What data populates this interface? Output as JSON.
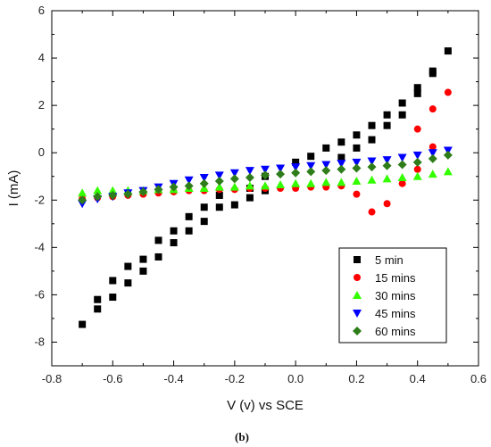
{
  "chart_data": {
    "type": "scatter",
    "xlabel": "V (v) vs SCE",
    "ylabel": "I (mA)",
    "xlim": [
      -0.8,
      0.6
    ],
    "ylim": [
      -9,
      6
    ],
    "xticks": [
      -0.8,
      -0.6,
      -0.4,
      -0.2,
      0.0,
      0.2,
      0.4,
      0.6
    ],
    "xtick_labels": [
      "-0.8",
      "-0.6",
      "-0.4",
      "-0.2",
      "0.0",
      "0.2",
      "0.4",
      "0.6"
    ],
    "yticks": [
      -8,
      -6,
      -4,
      -2,
      0,
      2,
      4,
      6
    ],
    "ytick_labels": [
      "-8",
      "-6",
      "-4",
      "-2",
      "0",
      "2",
      "4",
      "6"
    ],
    "legend_position": "bottom-right",
    "grid": false,
    "series": [
      {
        "name": "5 min",
        "color": "#000000",
        "marker": "square",
        "points": [
          [
            -0.7,
            -7.25
          ],
          [
            -0.65,
            -6.6
          ],
          [
            -0.65,
            -6.2
          ],
          [
            -0.6,
            -6.1
          ],
          [
            -0.6,
            -5.4
          ],
          [
            -0.55,
            -5.5
          ],
          [
            -0.55,
            -4.8
          ],
          [
            -0.5,
            -5.0
          ],
          [
            -0.5,
            -4.5
          ],
          [
            -0.45,
            -4.4
          ],
          [
            -0.45,
            -3.7
          ],
          [
            -0.4,
            -3.8
          ],
          [
            -0.4,
            -3.3
          ],
          [
            -0.35,
            -3.3
          ],
          [
            -0.35,
            -2.7
          ],
          [
            -0.3,
            -2.9
          ],
          [
            -0.3,
            -2.3
          ],
          [
            -0.25,
            -2.3
          ],
          [
            -0.25,
            -1.8
          ],
          [
            -0.2,
            -2.2
          ],
          [
            -0.15,
            -1.9
          ],
          [
            -0.15,
            -1.5
          ],
          [
            -0.1,
            -1.6
          ],
          [
            -0.1,
            -1.0
          ],
          [
            0.0,
            -0.4
          ],
          [
            0.05,
            -0.15
          ],
          [
            0.1,
            0.2
          ],
          [
            0.15,
            0.45
          ],
          [
            0.15,
            -0.2
          ],
          [
            0.2,
            0.2
          ],
          [
            0.2,
            0.75
          ],
          [
            0.25,
            0.55
          ],
          [
            0.25,
            1.15
          ],
          [
            0.3,
            1.15
          ],
          [
            0.3,
            1.6
          ],
          [
            0.35,
            1.6
          ],
          [
            0.35,
            2.1
          ],
          [
            0.4,
            2.5
          ],
          [
            0.4,
            2.75
          ],
          [
            0.45,
            3.35
          ],
          [
            0.45,
            3.45
          ],
          [
            0.5,
            4.3
          ]
        ]
      },
      {
        "name": "15 mins",
        "color": "#ff0000",
        "marker": "circle",
        "points": [
          [
            -0.7,
            -1.95
          ],
          [
            -0.65,
            -1.9
          ],
          [
            -0.6,
            -1.85
          ],
          [
            -0.55,
            -1.8
          ],
          [
            -0.5,
            -1.75
          ],
          [
            -0.45,
            -1.7
          ],
          [
            -0.4,
            -1.65
          ],
          [
            -0.35,
            -1.6
          ],
          [
            -0.3,
            -1.6
          ],
          [
            -0.25,
            -1.55
          ],
          [
            -0.2,
            -1.55
          ],
          [
            -0.15,
            -1.5
          ],
          [
            -0.1,
            -1.5
          ],
          [
            -0.05,
            -1.5
          ],
          [
            0.0,
            -1.5
          ],
          [
            0.05,
            -1.45
          ],
          [
            0.1,
            -1.45
          ],
          [
            0.15,
            -1.4
          ],
          [
            0.2,
            -1.75
          ],
          [
            0.25,
            -2.5
          ],
          [
            0.3,
            -2.15
          ],
          [
            0.35,
            -1.3
          ],
          [
            0.4,
            1.0
          ],
          [
            0.4,
            -0.7
          ],
          [
            0.45,
            1.85
          ],
          [
            0.45,
            0.25
          ],
          [
            0.5,
            2.55
          ]
        ]
      },
      {
        "name": "30 mins",
        "color": "#33ff00",
        "marker": "triangle-up",
        "points": [
          [
            -0.7,
            -1.7
          ],
          [
            -0.65,
            -1.6
          ],
          [
            -0.6,
            -1.6
          ],
          [
            -0.55,
            -1.6
          ],
          [
            -0.5,
            -1.6
          ],
          [
            -0.45,
            -1.55
          ],
          [
            -0.4,
            -1.55
          ],
          [
            -0.35,
            -1.5
          ],
          [
            -0.3,
            -1.5
          ],
          [
            -0.25,
            -1.45
          ],
          [
            -0.2,
            -1.45
          ],
          [
            -0.15,
            -1.4
          ],
          [
            -0.1,
            -1.4
          ],
          [
            -0.05,
            -1.35
          ],
          [
            0.0,
            -1.3
          ],
          [
            0.05,
            -1.3
          ],
          [
            0.1,
            -1.25
          ],
          [
            0.15,
            -1.25
          ],
          [
            0.2,
            -1.2
          ],
          [
            0.25,
            -1.15
          ],
          [
            0.3,
            -1.1
          ],
          [
            0.35,
            -1.05
          ],
          [
            0.4,
            -1.0
          ],
          [
            0.45,
            -0.9
          ],
          [
            0.5,
            -0.8
          ]
        ]
      },
      {
        "name": "45 mins",
        "color": "#0000ff",
        "marker": "triangle-down",
        "points": [
          [
            -0.7,
            -2.15
          ],
          [
            -0.65,
            -1.95
          ],
          [
            -0.6,
            -1.85
          ],
          [
            -0.55,
            -1.7
          ],
          [
            -0.5,
            -1.6
          ],
          [
            -0.45,
            -1.45
          ],
          [
            -0.4,
            -1.3
          ],
          [
            -0.35,
            -1.15
          ],
          [
            -0.3,
            -1.05
          ],
          [
            -0.25,
            -0.95
          ],
          [
            -0.2,
            -0.85
          ],
          [
            -0.15,
            -0.75
          ],
          [
            -0.1,
            -0.7
          ],
          [
            -0.05,
            -0.65
          ],
          [
            0.0,
            -0.6
          ],
          [
            0.05,
            -0.55
          ],
          [
            0.1,
            -0.5
          ],
          [
            0.15,
            -0.45
          ],
          [
            0.2,
            -0.4
          ],
          [
            0.25,
            -0.35
          ],
          [
            0.3,
            -0.3
          ],
          [
            0.35,
            -0.2
          ],
          [
            0.4,
            -0.1
          ],
          [
            0.45,
            0.0
          ],
          [
            0.5,
            0.1
          ]
        ]
      },
      {
        "name": "60 mins",
        "color": "#2e7d1a",
        "marker": "diamond",
        "points": [
          [
            -0.7,
            -2.0
          ],
          [
            -0.65,
            -1.85
          ],
          [
            -0.6,
            -1.8
          ],
          [
            -0.55,
            -1.75
          ],
          [
            -0.5,
            -1.65
          ],
          [
            -0.45,
            -1.55
          ],
          [
            -0.4,
            -1.45
          ],
          [
            -0.35,
            -1.4
          ],
          [
            -0.3,
            -1.3
          ],
          [
            -0.25,
            -1.2
          ],
          [
            -0.2,
            -1.1
          ],
          [
            -0.15,
            -1.05
          ],
          [
            -0.1,
            -0.95
          ],
          [
            -0.05,
            -0.9
          ],
          [
            0.0,
            -0.85
          ],
          [
            0.05,
            -0.8
          ],
          [
            0.1,
            -0.75
          ],
          [
            0.15,
            -0.7
          ],
          [
            0.2,
            -0.65
          ],
          [
            0.25,
            -0.6
          ],
          [
            0.3,
            -0.55
          ],
          [
            0.35,
            -0.5
          ],
          [
            0.4,
            -0.4
          ],
          [
            0.45,
            -0.25
          ],
          [
            0.5,
            -0.1
          ]
        ]
      }
    ]
  },
  "caption": "(b)"
}
